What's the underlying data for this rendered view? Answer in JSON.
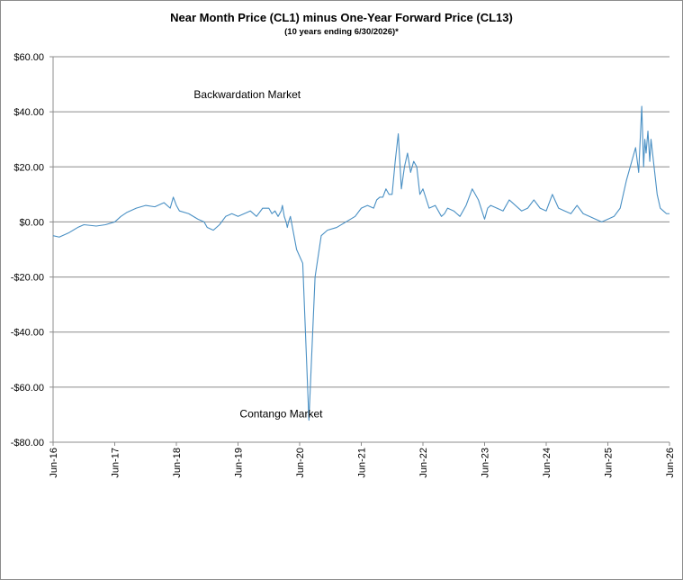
{
  "chart_data": {
    "type": "line",
    "title": "Near Month Price (CL1) minus One-Year Forward Price (CL13)",
    "subtitle": "(10 years ending  6/30/2026)*",
    "ylim": [
      -80,
      60
    ],
    "y_ticks": [
      60,
      40,
      20,
      0,
      -20,
      -40,
      -60,
      -80
    ],
    "y_tick_labels": [
      "$60.00",
      "$40.00",
      "$20.00",
      "$0.00",
      "-$20.00",
      "-$40.00",
      "-$60.00",
      "-$80.00"
    ],
    "x_tick_labels": [
      "Jun-16",
      "Jun-17",
      "Jun-18",
      "Jun-19",
      "Jun-20",
      "Jun-21",
      "Jun-22",
      "Jun-23",
      "Jun-24",
      "Jun-25",
      "Jun-26"
    ],
    "grid": "horizontal",
    "line_color": "#4a90c4",
    "annotations": [
      {
        "text": "Backwardation Market",
        "x": 2019.65,
        "y": 45
      },
      {
        "text": "Contango Market",
        "x": 2020.2,
        "y": -71
      }
    ],
    "series": [
      {
        "x": [
          2016.5,
          2016.6,
          2016.75,
          2016.9,
          2017.0,
          2017.2,
          2017.35,
          2017.5,
          2017.6,
          2017.7,
          2017.85,
          2018.0,
          2018.15,
          2018.3,
          2018.4,
          2018.45,
          2018.5,
          2018.55,
          2018.7,
          2018.85,
          2018.95,
          2019.0,
          2019.1,
          2019.2,
          2019.3,
          2019.4,
          2019.5,
          2019.6,
          2019.7,
          2019.8,
          2019.9,
          2020.0,
          2020.05,
          2020.1,
          2020.15,
          2020.2,
          2020.22,
          2020.25,
          2020.28,
          2020.3,
          2020.32,
          2020.35,
          2020.45,
          2020.55,
          2020.65,
          2020.75,
          2020.85,
          2020.95,
          2021.1,
          2021.25,
          2021.4,
          2021.5,
          2021.6,
          2021.7,
          2021.75,
          2021.8,
          2021.85,
          2021.9,
          2021.95,
          2022.0,
          2022.05,
          2022.1,
          2022.15,
          2022.2,
          2022.25,
          2022.3,
          2022.35,
          2022.4,
          2022.45,
          2022.5,
          2022.6,
          2022.7,
          2022.8,
          2022.85,
          2022.9,
          2023.0,
          2023.1,
          2023.2,
          2023.3,
          2023.4,
          2023.5,
          2023.55,
          2023.6,
          2023.7,
          2023.8,
          2023.9,
          2024.0,
          2024.1,
          2024.2,
          2024.3,
          2024.4,
          2024.5,
          2024.6,
          2024.7,
          2024.8,
          2024.9,
          2025.0,
          2025.1,
          2025.2,
          2025.3,
          2025.4,
          2025.5,
          2025.6,
          2025.7,
          2025.8,
          2025.95,
          2026.0,
          2026.05,
          2026.08,
          2026.1,
          2026.12,
          2026.15,
          2026.18,
          2026.2,
          2026.25,
          2026.3,
          2026.35,
          2026.4,
          2026.45,
          2026.5
        ],
        "values": [
          -5,
          -5.5,
          -4,
          -2,
          -1,
          -1.5,
          -1,
          0,
          2,
          3.5,
          5,
          6,
          5.5,
          7,
          5,
          9,
          6,
          4,
          3,
          1,
          0,
          -2,
          -3,
          -1,
          2,
          3,
          2,
          3,
          4,
          2,
          5,
          5,
          3,
          4,
          2,
          4,
          6,
          2,
          0,
          -2,
          0,
          2,
          -10,
          -15,
          -72,
          -20,
          -5,
          -3,
          -2,
          0,
          2,
          5,
          6,
          5,
          8,
          9,
          9,
          12,
          10,
          10,
          22,
          32,
          12,
          20,
          25,
          18,
          22,
          20,
          10,
          12,
          5,
          6,
          2,
          3,
          5,
          4,
          2,
          6,
          12,
          8,
          1,
          5,
          6,
          5,
          4,
          8,
          6,
          4,
          5,
          8,
          5,
          4,
          10,
          5,
          4,
          3,
          6,
          3,
          2,
          1,
          0,
          1,
          2,
          5,
          15,
          27,
          18,
          42,
          20,
          30,
          25,
          33,
          22,
          30,
          20,
          10,
          5,
          4,
          3,
          3
        ]
      }
    ]
  }
}
